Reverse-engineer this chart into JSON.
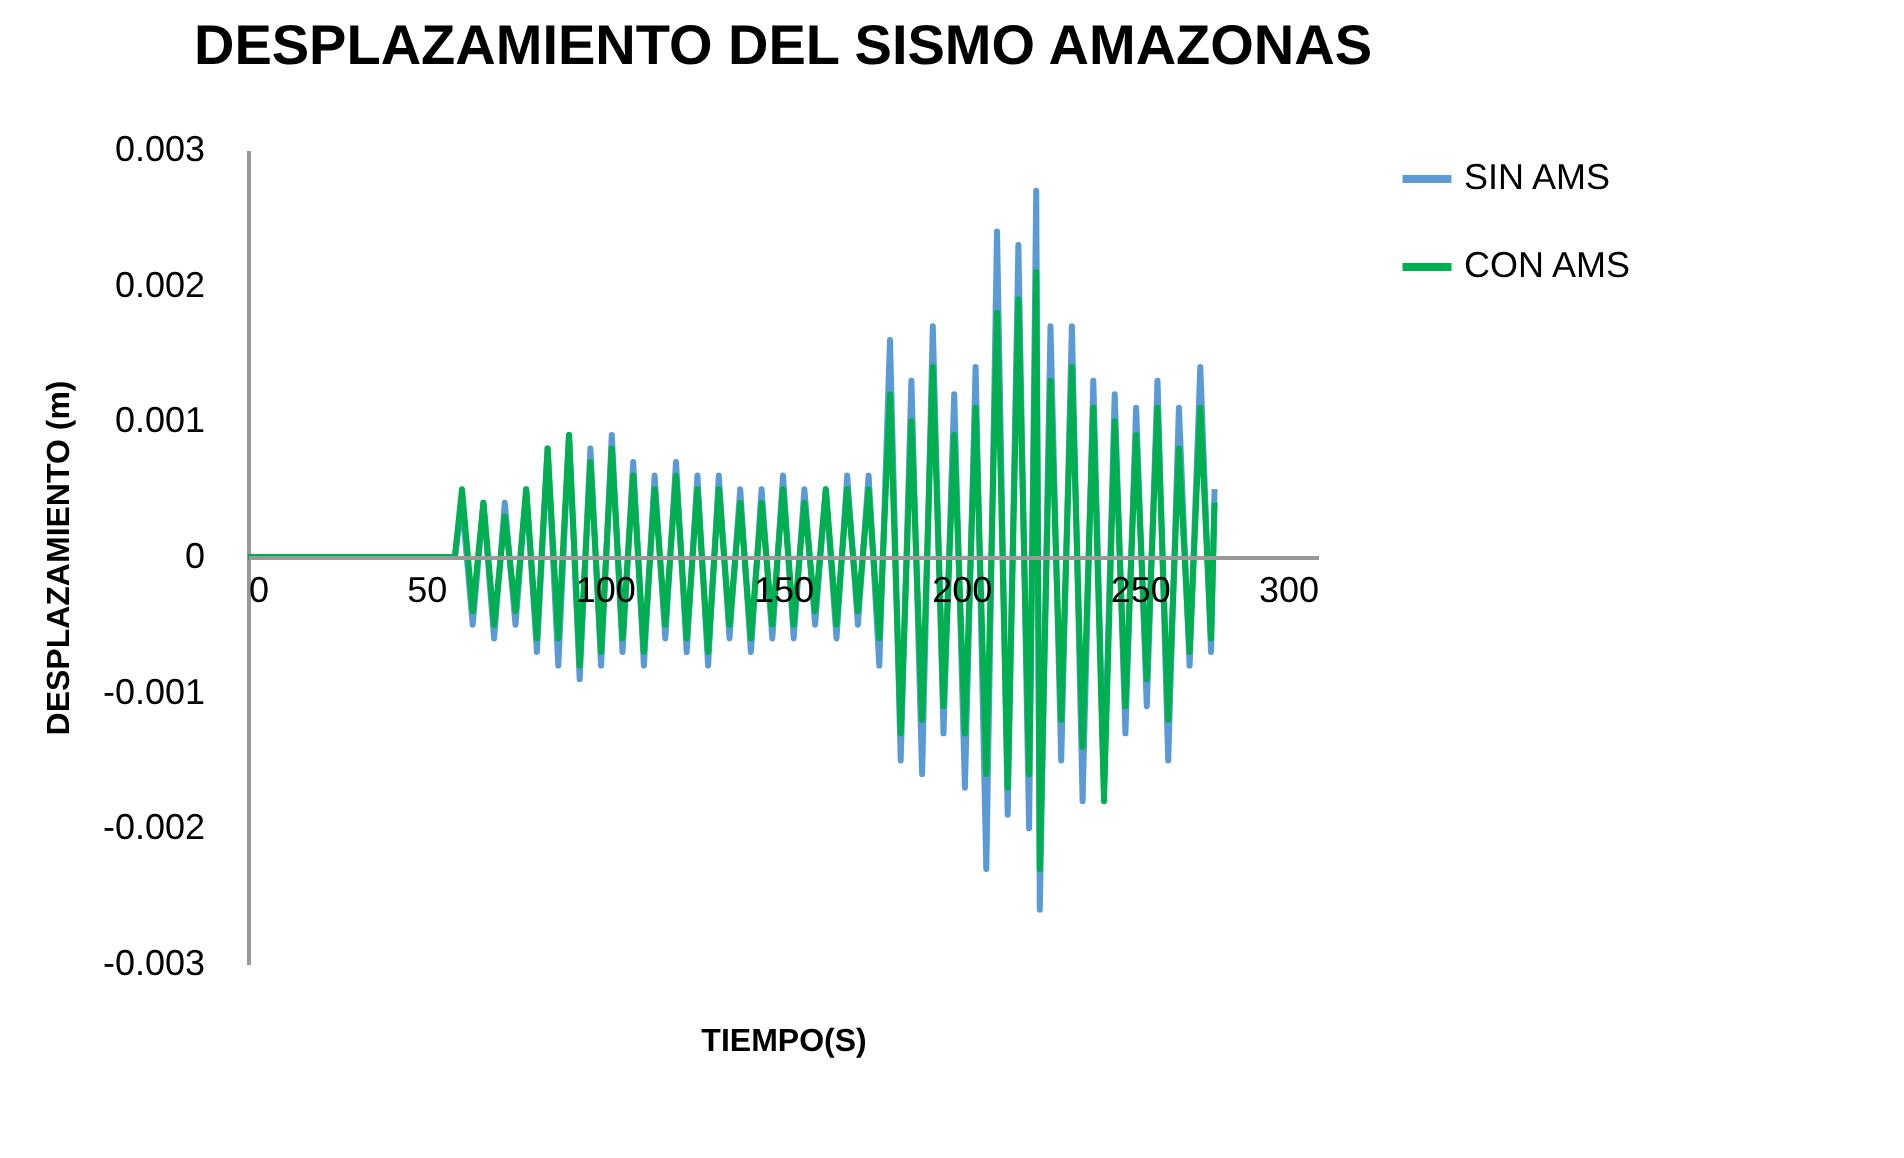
{
  "chart_data": {
    "type": "line",
    "title": "DESPLAZAMIENTO DEL SISMO AMAZONAS",
    "xlabel": "TIEMPO(S)",
    "ylabel": "DESPLAZAMIENTO  (m)",
    "x": [
      0,
      58,
      60,
      63,
      66,
      69,
      72,
      75,
      78,
      81,
      84,
      87,
      90,
      93,
      96,
      99,
      102,
      105,
      108,
      111,
      114,
      117,
      120,
      123,
      126,
      129,
      132,
      135,
      138,
      141,
      144,
      147,
      150,
      153,
      156,
      159,
      162,
      165,
      168,
      171,
      174,
      177,
      180,
      183,
      186,
      189,
      192,
      195,
      198,
      201,
      204,
      207,
      210,
      213,
      216,
      219,
      221,
      222,
      225,
      228,
      231,
      234,
      237,
      240,
      243,
      246,
      249,
      252,
      255,
      258,
      261,
      264,
      267,
      270,
      271
    ],
    "series": [
      {
        "name": "SIN AMS",
        "color": "#5b9bd5",
        "values": [
          0,
          0,
          0.0004,
          -0.0005,
          0.0004,
          -0.0006,
          0.0004,
          -0.0005,
          0.0005,
          -0.0007,
          0.0008,
          -0.0008,
          0.0009,
          -0.0009,
          0.0008,
          -0.0008,
          0.0009,
          -0.0007,
          0.0007,
          -0.0008,
          0.0006,
          -0.0006,
          0.0007,
          -0.0007,
          0.0006,
          -0.0008,
          0.0006,
          -0.0006,
          0.0005,
          -0.0007,
          0.0005,
          -0.0006,
          0.0006,
          -0.0006,
          0.0005,
          -0.0005,
          0.0005,
          -0.0006,
          0.0006,
          -0.0005,
          0.0006,
          -0.0008,
          0.0016,
          -0.0015,
          0.0013,
          -0.0016,
          0.0017,
          -0.0013,
          0.0012,
          -0.0017,
          0.0014,
          -0.0023,
          0.0024,
          -0.0019,
          0.0023,
          -0.002,
          0.0027,
          -0.0026,
          0.0017,
          -0.0015,
          0.0017,
          -0.0018,
          0.0013,
          -0.0017,
          0.0012,
          -0.0013,
          0.0011,
          -0.0011,
          0.0013,
          -0.0015,
          0.0011,
          -0.0008,
          0.0014,
          -0.0007,
          0.0005
        ]
      },
      {
        "name": "CON AMS",
        "color": "#00b050",
        "values": [
          0,
          0,
          0.0005,
          -0.0004,
          0.0004,
          -0.0005,
          0.0003,
          -0.0004,
          0.0005,
          -0.0006,
          0.0008,
          -0.0006,
          0.0009,
          -0.0008,
          0.0007,
          -0.0007,
          0.0008,
          -0.0006,
          0.0006,
          -0.0007,
          0.0005,
          -0.0005,
          0.0006,
          -0.0006,
          0.0005,
          -0.0007,
          0.0005,
          -0.0005,
          0.0004,
          -0.0006,
          0.0004,
          -0.0005,
          0.0005,
          -0.0005,
          0.0004,
          -0.0004,
          0.0005,
          -0.0005,
          0.0005,
          -0.0004,
          0.0005,
          -0.0006,
          0.0012,
          -0.0013,
          0.001,
          -0.0012,
          0.0014,
          -0.0011,
          0.0009,
          -0.0013,
          0.0011,
          -0.0016,
          0.0018,
          -0.0017,
          0.0019,
          -0.0016,
          0.0021,
          -0.0023,
          0.0013,
          -0.0012,
          0.0014,
          -0.0014,
          0.0011,
          -0.0018,
          0.001,
          -0.0011,
          0.0009,
          -0.0009,
          0.0011,
          -0.0012,
          0.0008,
          -0.0007,
          0.0011,
          -0.0006,
          0.0004
        ]
      }
    ],
    "xlim": [
      0,
      300
    ],
    "xticks": [
      0,
      50,
      100,
      150,
      200,
      250,
      300
    ],
    "ylim": [
      -0.003,
      0.003
    ],
    "yticks": [
      -0.003,
      -0.002,
      -0.001,
      0,
      0.001,
      0.002,
      0.003
    ],
    "grid": false,
    "legend": "right",
    "marker": "none",
    "line_style": "solid"
  }
}
